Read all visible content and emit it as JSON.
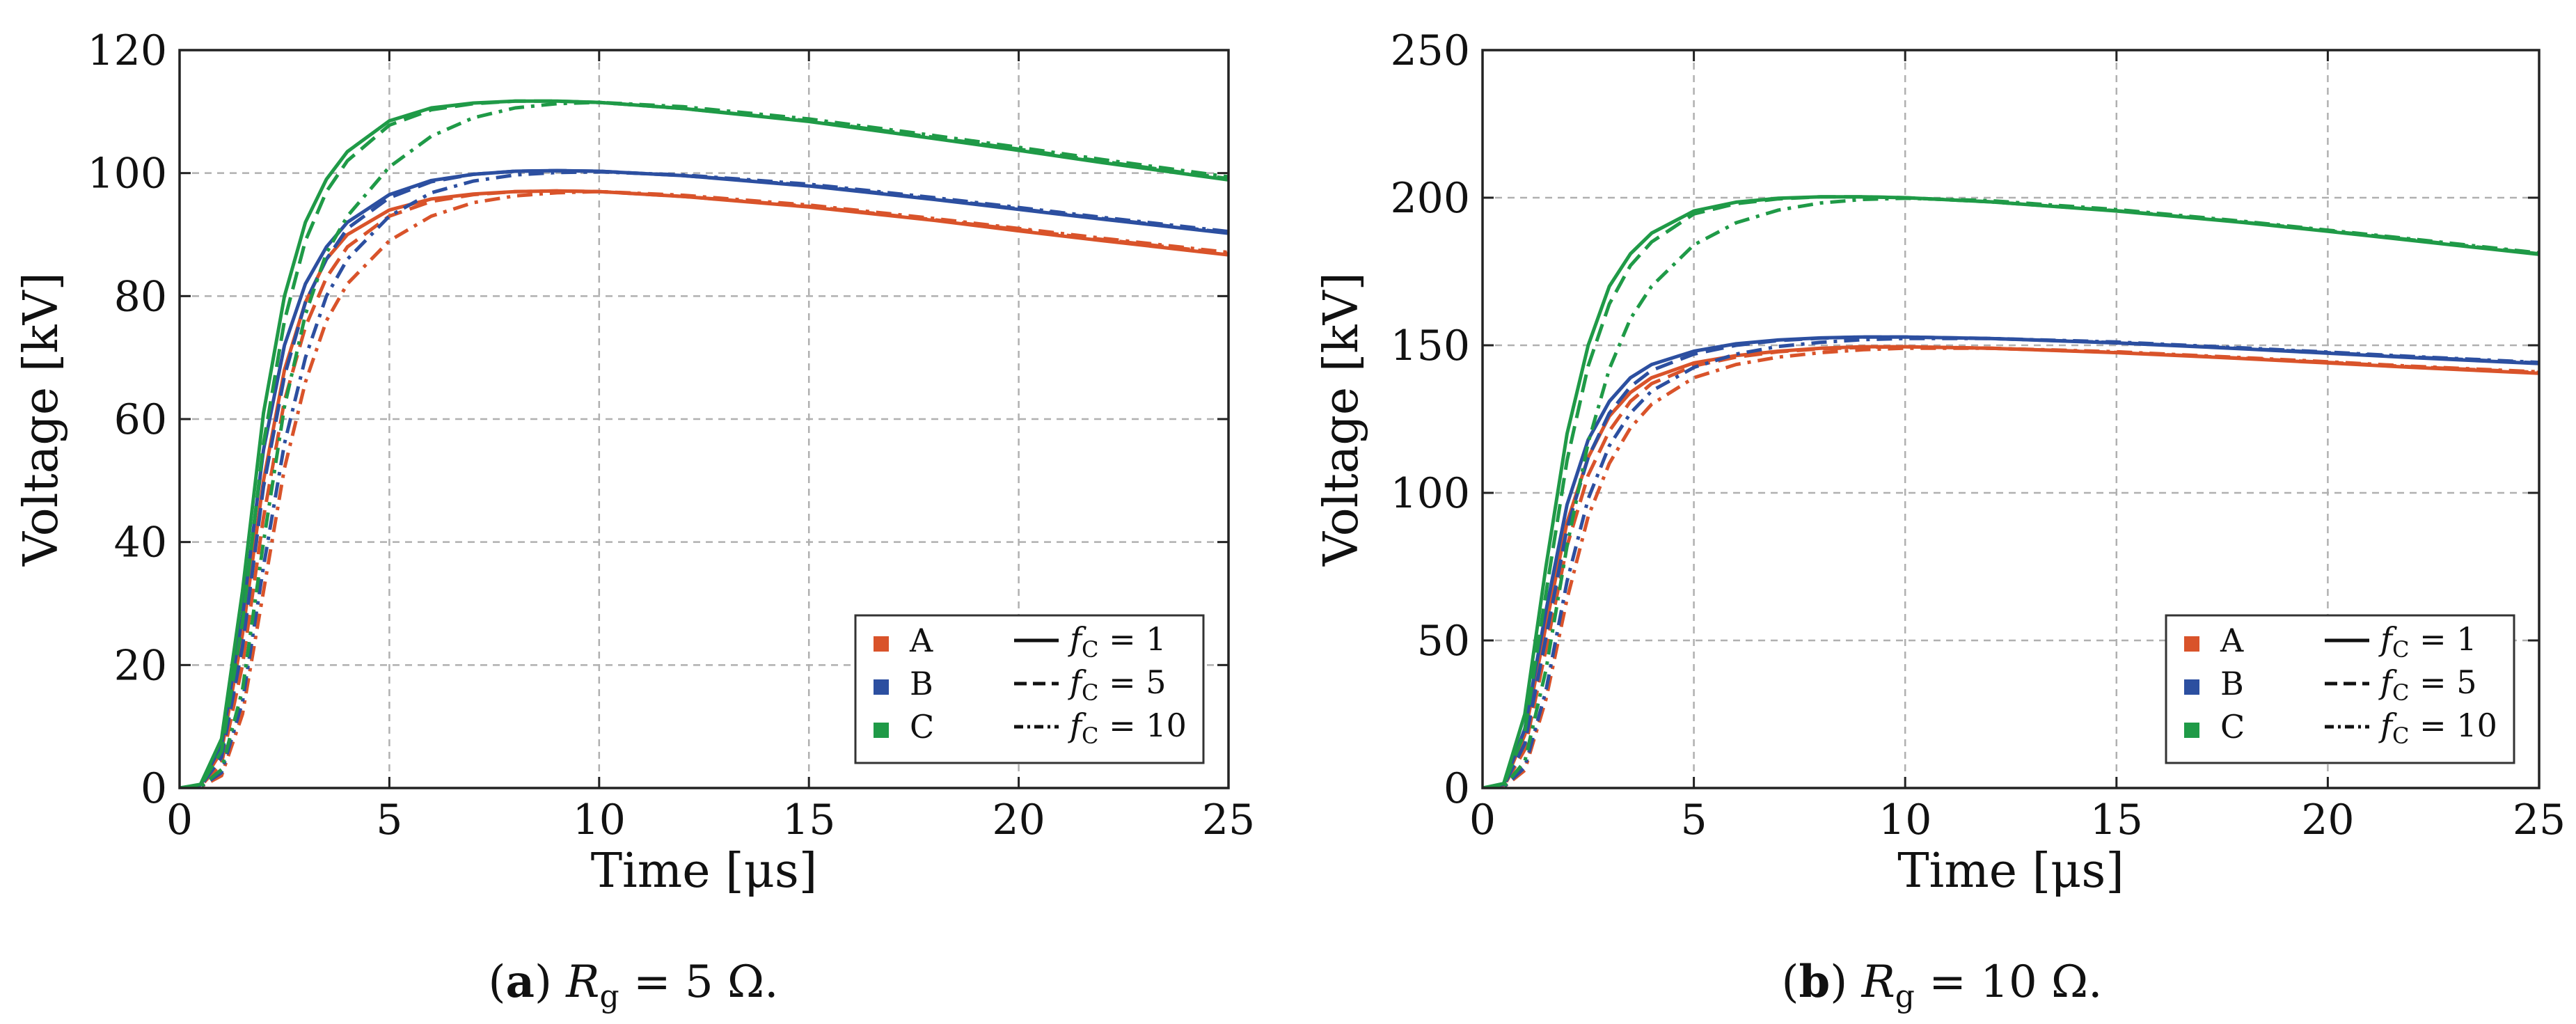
{
  "chart_data": [
    {
      "type": "line",
      "caption": {
        "label": "a",
        "var": "R",
        "sub": "g",
        "rest": " = 5 Ω."
      },
      "xlabel": "Time [μs]",
      "ylabel": "Voltage [kV]",
      "xlim": [
        0,
        25
      ],
      "ylim": [
        0,
        120
      ],
      "xticks": [
        "0",
        "5",
        "10",
        "15",
        "20",
        "25"
      ],
      "yticks": [
        "0",
        "20",
        "40",
        "60",
        "80",
        "100",
        "120"
      ],
      "grid": true,
      "legend_position": "lower-right",
      "legend": {
        "cases": [
          {
            "name": "A",
            "color": "#d9532a"
          },
          {
            "name": "B",
            "color": "#2c4fa0"
          },
          {
            "name": "C",
            "color": "#1f9a47"
          }
        ],
        "styles": [
          {
            "label": "f",
            "sub": "C",
            "rest": " = 1",
            "dash": "solid"
          },
          {
            "label": "f",
            "sub": "C",
            "rest": " = 5",
            "dash": "dashed"
          },
          {
            "label": "f",
            "sub": "C",
            "rest": " = 10",
            "dash": "dashdot"
          }
        ]
      },
      "series": [
        {
          "name": "A",
          "fc": 1,
          "color": "#d9532a",
          "dash": "solid",
          "x": [
            0,
            0.5,
            1,
            1.5,
            2,
            2.5,
            3,
            3.5,
            4,
            5,
            6,
            7,
            8,
            9,
            10,
            12,
            15,
            18,
            20,
            22,
            25
          ],
          "y": [
            0,
            0.5,
            6,
            25,
            50,
            68,
            79,
            86,
            90,
            94,
            95.8,
            96.6,
            97,
            97.1,
            97,
            96.2,
            94.5,
            92.3,
            90.6,
            89,
            86.7
          ]
        },
        {
          "name": "A",
          "fc": 5,
          "color": "#d9532a",
          "dash": "dashed",
          "x": [
            0,
            0.5,
            1,
            1.5,
            2,
            2.5,
            3,
            3.5,
            4,
            5,
            6,
            7,
            8,
            9,
            10,
            12,
            15,
            18,
            20,
            22,
            25
          ],
          "y": [
            0,
            0.3,
            4,
            20,
            44,
            63,
            75,
            83,
            88,
            93,
            95.4,
            96.5,
            97,
            97.1,
            97,
            96.2,
            94.6,
            92.4,
            90.8,
            89.2,
            86.9
          ]
        },
        {
          "name": "A",
          "fc": 10,
          "color": "#d9532a",
          "dash": "dashdot",
          "x": [
            0,
            0.5,
            1,
            1.5,
            2,
            2.5,
            3,
            3.5,
            4,
            5,
            6,
            7,
            8,
            9,
            10,
            12,
            15,
            18,
            20,
            22,
            25
          ],
          "y": [
            0,
            0.2,
            2,
            12,
            32,
            52,
            66,
            76,
            82,
            89,
            93,
            95.2,
            96.3,
            96.8,
            97,
            96.4,
            94.8,
            92.6,
            91,
            89.4,
            87.1
          ]
        },
        {
          "name": "B",
          "fc": 1,
          "color": "#2c4fa0",
          "dash": "solid",
          "x": [
            0,
            0.5,
            1,
            1.5,
            2,
            2.5,
            3,
            3.5,
            4,
            5,
            6,
            7,
            8,
            9,
            10,
            12,
            15,
            18,
            20,
            22,
            25
          ],
          "y": [
            0,
            0.5,
            7,
            28,
            55,
            72,
            82,
            88,
            92,
            96.5,
            98.8,
            99.8,
            100.3,
            100.4,
            100.3,
            99.6,
            97.9,
            95.7,
            94.1,
            92.5,
            90.2
          ]
        },
        {
          "name": "B",
          "fc": 5,
          "color": "#2c4fa0",
          "dash": "dashed",
          "x": [
            0,
            0.5,
            1,
            1.5,
            2,
            2.5,
            3,
            3.5,
            4,
            5,
            6,
            7,
            8,
            9,
            10,
            12,
            15,
            18,
            20,
            22,
            25
          ],
          "y": [
            0,
            0.3,
            5,
            23,
            49,
            67,
            79,
            86,
            91,
            96,
            98.6,
            99.8,
            100.3,
            100.4,
            100.3,
            99.6,
            98,
            95.8,
            94.2,
            92.6,
            90.3
          ]
        },
        {
          "name": "B",
          "fc": 10,
          "color": "#2c4fa0",
          "dash": "dashdot",
          "x": [
            0,
            0.5,
            1,
            1.5,
            2,
            2.5,
            3,
            3.5,
            4,
            5,
            6,
            7,
            8,
            9,
            10,
            12,
            15,
            18,
            20,
            22,
            25
          ],
          "y": [
            0,
            0.2,
            2.5,
            14,
            36,
            56,
            70,
            80,
            86,
            93,
            96.8,
            98.7,
            99.7,
            100.1,
            100.2,
            99.7,
            98.2,
            96,
            94.4,
            92.8,
            90.5
          ]
        },
        {
          "name": "C",
          "fc": 1,
          "color": "#1f9a47",
          "dash": "solid",
          "x": [
            0,
            0.5,
            1,
            1.5,
            2,
            2.5,
            3,
            3.5,
            4,
            5,
            6,
            7,
            8,
            9,
            10,
            12,
            15,
            18,
            20,
            22,
            25
          ],
          "y": [
            0,
            0.6,
            8,
            32,
            61,
            80,
            92,
            99,
            103.5,
            108.5,
            110.6,
            111.4,
            111.7,
            111.7,
            111.5,
            110.5,
            108.4,
            105.6,
            103.7,
            101.7,
            98.9
          ]
        },
        {
          "name": "C",
          "fc": 5,
          "color": "#1f9a47",
          "dash": "dashed",
          "x": [
            0,
            0.5,
            1,
            1.5,
            2,
            2.5,
            3,
            3.5,
            4,
            5,
            6,
            7,
            8,
            9,
            10,
            12,
            15,
            18,
            20,
            22,
            25
          ],
          "y": [
            0,
            0.4,
            6,
            27,
            56,
            76,
            89,
            97,
            102,
            107.8,
            110.3,
            111.3,
            111.7,
            111.7,
            111.5,
            110.5,
            108.5,
            105.8,
            103.9,
            101.9,
            99.1
          ]
        },
        {
          "name": "C",
          "fc": 10,
          "color": "#1f9a47",
          "dash": "dashdot",
          "x": [
            0,
            0.5,
            1,
            1.5,
            2,
            2.5,
            3,
            3.5,
            4,
            5,
            6,
            7,
            8,
            9,
            10,
            12,
            15,
            18,
            20,
            22,
            25
          ],
          "y": [
            0,
            0.2,
            3,
            16,
            40,
            62,
            77,
            87,
            93,
            101,
            106,
            109,
            110.6,
            111.3,
            111.5,
            110.8,
            108.8,
            106.1,
            104.2,
            102.2,
            99.4
          ]
        }
      ]
    },
    {
      "type": "line",
      "caption": {
        "label": "b",
        "var": "R",
        "sub": "g",
        "rest": " = 10 Ω."
      },
      "xlabel": "Time [μs]",
      "ylabel": "Voltage [kV]",
      "xlim": [
        0,
        25
      ],
      "ylim": [
        0,
        250
      ],
      "xticks": [
        "0",
        "5",
        "10",
        "15",
        "20",
        "25"
      ],
      "yticks": [
        "0",
        "50",
        "100",
        "150",
        "200",
        "250"
      ],
      "grid": true,
      "legend_position": "lower-right",
      "legend": {
        "cases": [
          {
            "name": "A",
            "color": "#d9532a"
          },
          {
            "name": "B",
            "color": "#2c4fa0"
          },
          {
            "name": "C",
            "color": "#1f9a47"
          }
        ],
        "styles": [
          {
            "label": "f",
            "sub": "C",
            "rest": " = 1",
            "dash": "solid"
          },
          {
            "label": "f",
            "sub": "C",
            "rest": " = 5",
            "dash": "dashed"
          },
          {
            "label": "f",
            "sub": "C",
            "rest": " = 10",
            "dash": "dashdot"
          }
        ]
      },
      "series": [
        {
          "name": "A",
          "fc": 1,
          "color": "#d9532a",
          "dash": "solid",
          "x": [
            0,
            0.5,
            1,
            1.5,
            2,
            2.5,
            3,
            3.5,
            4,
            5,
            6,
            7,
            8,
            9,
            10,
            12,
            15,
            18,
            20,
            22,
            25
          ],
          "y": [
            0,
            1,
            18,
            55,
            90,
            112,
            126,
            134,
            139,
            144,
            146.5,
            148,
            149,
            149.5,
            149.5,
            149,
            147.5,
            145.5,
            144,
            142.5,
            140.5
          ]
        },
        {
          "name": "A",
          "fc": 5,
          "color": "#d9532a",
          "dash": "dashed",
          "x": [
            0,
            0.5,
            1,
            1.5,
            2,
            2.5,
            3,
            3.5,
            4,
            5,
            6,
            7,
            8,
            9,
            10,
            12,
            15,
            18,
            20,
            22,
            25
          ],
          "y": [
            0,
            0.6,
            13,
            47,
            82,
            106,
            121,
            131,
            137,
            143,
            146,
            147.8,
            148.8,
            149.3,
            149.5,
            149,
            147.6,
            145.6,
            144.2,
            142.7,
            140.8
          ]
        },
        {
          "name": "A",
          "fc": 10,
          "color": "#d9532a",
          "dash": "dashdot",
          "x": [
            0,
            0.5,
            1,
            1.5,
            2,
            2.5,
            3,
            3.5,
            4,
            5,
            6,
            7,
            8,
            9,
            10,
            12,
            15,
            18,
            20,
            22,
            25
          ],
          "y": [
            0,
            0.3,
            6,
            30,
            64,
            92,
            110,
            122,
            130,
            139,
            143.5,
            146,
            147.5,
            148.5,
            149,
            149,
            147.8,
            145.8,
            144.4,
            142.9,
            141
          ]
        },
        {
          "name": "B",
          "fc": 1,
          "color": "#2c4fa0",
          "dash": "solid",
          "x": [
            0,
            0.5,
            1,
            1.5,
            2,
            2.5,
            3,
            3.5,
            4,
            5,
            6,
            7,
            8,
            9,
            10,
            12,
            15,
            18,
            20,
            22,
            25
          ],
          "y": [
            0,
            1.2,
            20,
            60,
            96,
            118,
            131,
            139,
            143.5,
            148,
            150.5,
            151.8,
            152.5,
            152.8,
            152.8,
            152.3,
            150.8,
            148.8,
            147.3,
            145.8,
            143.8
          ]
        },
        {
          "name": "B",
          "fc": 5,
          "color": "#2c4fa0",
          "dash": "dashed",
          "x": [
            0,
            0.5,
            1,
            1.5,
            2,
            2.5,
            3,
            3.5,
            4,
            5,
            6,
            7,
            8,
            9,
            10,
            12,
            15,
            18,
            20,
            22,
            25
          ],
          "y": [
            0,
            0.7,
            15,
            51,
            88,
            112,
            127,
            136,
            141.5,
            147,
            150,
            151.6,
            152.4,
            152.8,
            152.8,
            152.3,
            150.9,
            148.9,
            147.5,
            146,
            144
          ]
        },
        {
          "name": "B",
          "fc": 10,
          "color": "#2c4fa0",
          "dash": "dashdot",
          "x": [
            0,
            0.5,
            1,
            1.5,
            2,
            2.5,
            3,
            3.5,
            4,
            5,
            6,
            7,
            8,
            9,
            10,
            12,
            15,
            18,
            20,
            22,
            25
          ],
          "y": [
            0,
            0.3,
            7,
            33,
            70,
            98,
            116,
            127,
            134.5,
            142.5,
            147,
            149.6,
            151,
            151.9,
            152.3,
            152.3,
            151.1,
            149.1,
            147.7,
            146.2,
            144.2
          ]
        },
        {
          "name": "C",
          "fc": 1,
          "color": "#1f9a47",
          "dash": "solid",
          "x": [
            0,
            0.5,
            1,
            1.5,
            2,
            2.5,
            3,
            3.5,
            4,
            5,
            6,
            7,
            8,
            9,
            10,
            12,
            15,
            18,
            20,
            22,
            25
          ],
          "y": [
            0,
            1.5,
            25,
            75,
            120,
            150,
            170,
            181,
            188,
            195.5,
            198.5,
            199.8,
            200.3,
            200.3,
            200,
            198.6,
            195.5,
            191.6,
            188.6,
            185.5,
            180.8
          ]
        },
        {
          "name": "C",
          "fc": 5,
          "color": "#1f9a47",
          "dash": "dashed",
          "x": [
            0,
            0.5,
            1,
            1.5,
            2,
            2.5,
            3,
            3.5,
            4,
            5,
            6,
            7,
            8,
            9,
            10,
            12,
            15,
            18,
            20,
            22,
            25
          ],
          "y": [
            0,
            1,
            19,
            66,
            111,
            143,
            164,
            177,
            185,
            194.5,
            198,
            199.6,
            200.3,
            200.3,
            200,
            198.6,
            195.6,
            191.7,
            188.8,
            185.7,
            181
          ]
        },
        {
          "name": "C",
          "fc": 10,
          "color": "#1f9a47",
          "dash": "dashdot",
          "x": [
            0,
            0.5,
            1,
            1.5,
            2,
            2.5,
            3,
            3.5,
            4,
            5,
            6,
            7,
            8,
            9,
            10,
            12,
            15,
            18,
            20,
            22,
            25
          ],
          "y": [
            0,
            0.5,
            9,
            40,
            82,
            117,
            142,
            159,
            170,
            184,
            191.5,
            195.8,
            198.2,
            199.4,
            199.8,
            199,
            196,
            192,
            189,
            186,
            181.3
          ]
        }
      ]
    }
  ]
}
